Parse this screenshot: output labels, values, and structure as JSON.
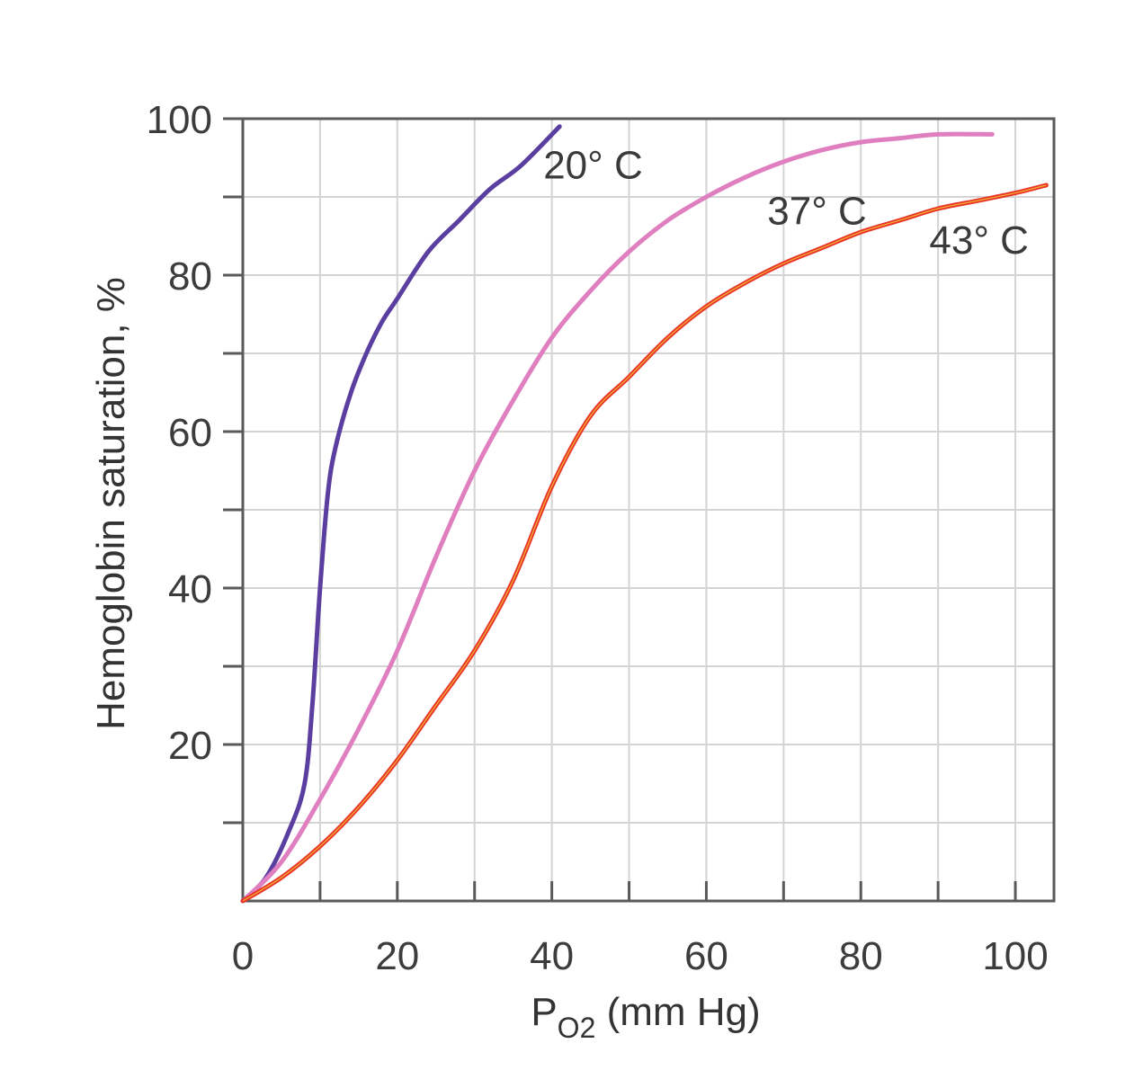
{
  "chart_data": {
    "type": "line",
    "title": "",
    "xlabel": {
      "main": "P",
      "subscript": "O2",
      "suffix": " (mm Hg)"
    },
    "ylabel": "Hemoglobin saturation, %",
    "xlim": [
      0,
      105
    ],
    "ylim": [
      0,
      100
    ],
    "x_ticks": [
      0,
      20,
      40,
      60,
      80,
      100
    ],
    "x_tick_labels": [
      "0",
      "20",
      "40",
      "60",
      "80",
      "100"
    ],
    "y_ticks": [
      20,
      40,
      60,
      80,
      100
    ],
    "y_tick_labels": [
      "20",
      "40",
      "60",
      "80",
      "100"
    ],
    "grid": true,
    "series": [
      {
        "name": "20° C",
        "color": "#5b3fa0",
        "x": [
          0,
          3,
          6,
          8,
          9,
          10,
          11,
          12,
          14,
          16,
          18,
          20,
          24,
          28,
          32,
          36,
          41
        ],
        "y": [
          0,
          3,
          9,
          15,
          25,
          40,
          52,
          58,
          65,
          70,
          74,
          77,
          83,
          87,
          91,
          94,
          99
        ]
      },
      {
        "name": "37° C",
        "color": "#e07fc0",
        "x": [
          0,
          5,
          10,
          15,
          20,
          25,
          30,
          35,
          40,
          45,
          50,
          55,
          60,
          65,
          70,
          75,
          80,
          85,
          90,
          97
        ],
        "y": [
          0,
          5,
          13,
          22,
          32,
          44,
          55,
          64,
          72,
          78,
          83,
          87,
          90,
          92.5,
          94.5,
          96,
          97,
          97.5,
          98,
          98
        ]
      },
      {
        "name": "43° C",
        "color": "#e8352a",
        "x": [
          0,
          5,
          10,
          15,
          20,
          25,
          30,
          35,
          40,
          45,
          50,
          55,
          60,
          65,
          70,
          75,
          80,
          85,
          90,
          95,
          100,
          104
        ],
        "y": [
          0,
          3,
          7,
          12,
          18,
          25,
          32,
          41,
          53,
          62,
          67,
          72,
          76,
          79,
          81.5,
          83.5,
          85.5,
          87,
          88.5,
          89.5,
          90.5,
          91.5
        ]
      }
    ]
  }
}
